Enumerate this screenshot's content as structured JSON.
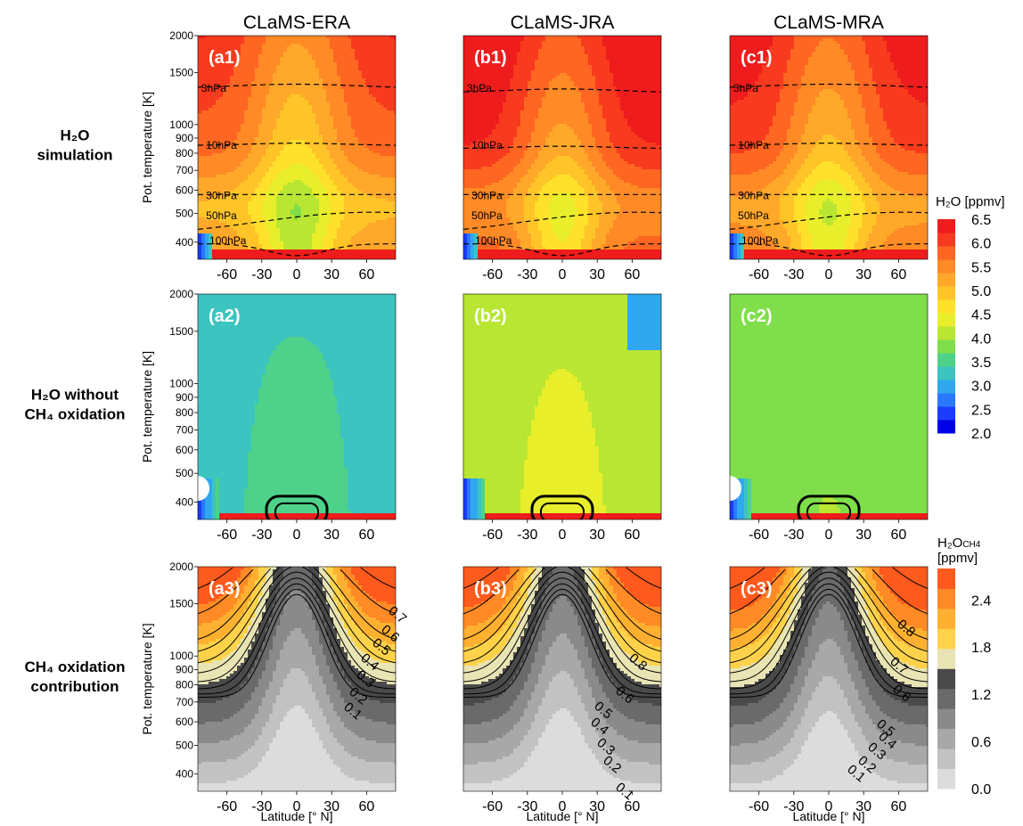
{
  "chart_data": {
    "type": "heatmap",
    "column_titles": [
      "CLaMS-ERA",
      "CLaMS-JRA",
      "CLaMS-MRA"
    ],
    "rows": [
      {
        "label_lines": [
          "H₂O",
          "simulation"
        ],
        "panels": [
          "(a1)",
          "(b1)",
          "(c1)"
        ],
        "colorbar": "h2o",
        "pressure_levels": [
          "3hPa",
          "10hPa",
          "30hPa",
          "50hPa",
          "100hPa"
        ]
      },
      {
        "label_lines": [
          "H₂O without",
          "CH₄ oxidation"
        ],
        "panels": [
          "(a2)",
          "(b2)",
          "(c2)"
        ],
        "colorbar": "h2o"
      },
      {
        "label_lines": [
          "CH₄ oxidation",
          "contribution"
        ],
        "panels": [
          "(a3)",
          "(b3)",
          "(c3)"
        ],
        "colorbar": "ch4",
        "contour_levels": [
          "0.1",
          "0.2",
          "0.3",
          "0.4",
          "0.5",
          "0.6",
          "0.7",
          "0.8"
        ]
      }
    ],
    "x_axis": {
      "label": "Latitude [° N]",
      "ticks": [
        -60,
        -30,
        0,
        30,
        60
      ],
      "range": [
        -85,
        85
      ]
    },
    "y_axis": {
      "label": "Pot. temperature [K]",
      "scale": "log",
      "ticks": [
        400,
        500,
        600,
        700,
        800,
        900,
        1000,
        1500,
        2000
      ],
      "range": [
        350,
        2000
      ]
    },
    "colorbars": {
      "h2o": {
        "title": "H₂O [ppmv]",
        "ticks": [
          "6.5",
          "6.0",
          "5.5",
          "5.0",
          "4.5",
          "4.0",
          "3.5",
          "3.0",
          "2.5",
          "2.0"
        ],
        "range": [
          2.0,
          6.5
        ],
        "colors": [
          "#0000e6",
          "#1a3cff",
          "#2a78ff",
          "#2fa8f0",
          "#3cc4c0",
          "#4ed28a",
          "#7fde4a",
          "#b8e632",
          "#e8ee2a",
          "#ffe02a",
          "#ffc428",
          "#ffa82a",
          "#ff8a26",
          "#ff6622",
          "#f83a1e",
          "#ee1c1c"
        ]
      },
      "ch4": {
        "title_lines": [
          "H₂O",
          "CH4",
          "[ppmv]"
        ],
        "ticks": [
          "2.4",
          "1.8",
          "1.2",
          "0.6",
          "0.0"
        ],
        "range": [
          0.0,
          2.8
        ],
        "colors": [
          "#dcdcdc",
          "#c2c2c2",
          "#a8a8a8",
          "#8a8a8a",
          "#6a6a6a",
          "#4a4a4a",
          "#e8e4b4",
          "#ffd24a",
          "#ffb030",
          "#ff8a26",
          "#ff5a1e"
        ]
      }
    }
  }
}
